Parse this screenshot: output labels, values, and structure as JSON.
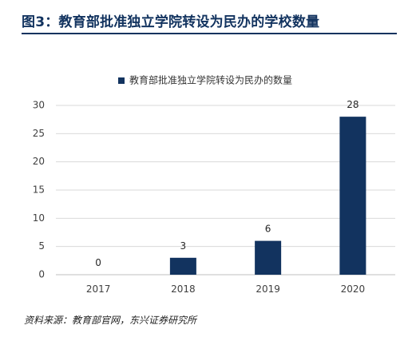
{
  "figure": {
    "title": "图3：教育部批准独立学院转设为民办的学校数量",
    "source": "资料来源：教育部官网，东兴证券研究所"
  },
  "chart_data": {
    "type": "bar",
    "title": "",
    "xlabel": "",
    "ylabel": "",
    "categories": [
      "2017",
      "2018",
      "2019",
      "2020"
    ],
    "series": [
      {
        "name": "教育部批准独立学院转设为民办的数量",
        "values": [
          0,
          3,
          6,
          28
        ],
        "color": "#12335f"
      }
    ],
    "data_labels": [
      "0",
      "3",
      "6",
      "28"
    ],
    "ylim": [
      0,
      30
    ],
    "yticks": [
      0,
      5,
      10,
      15,
      20,
      25,
      30
    ],
    "grid": true,
    "legend_position": "top-center"
  }
}
